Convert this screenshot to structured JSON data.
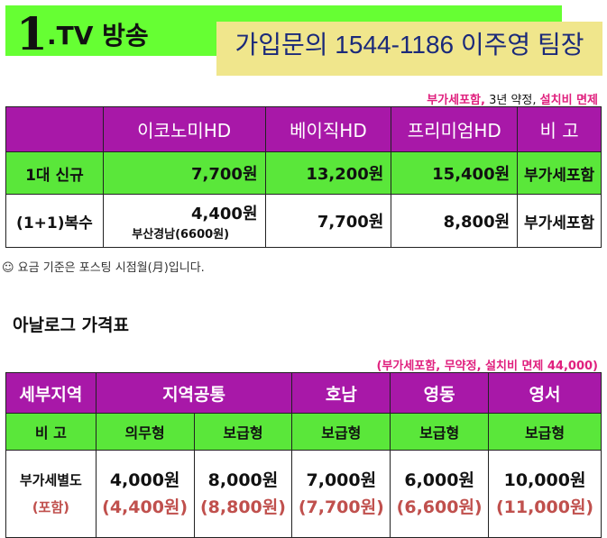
{
  "header": {
    "number": "1",
    "title": ".TV 방송",
    "contact": "가입문의 1544-1186  이주영 팀장"
  },
  "digital_note": {
    "part1": "부가세포함,",
    "part2": " 3년 약정,",
    "part3": "설치비 면제"
  },
  "digital_table": {
    "headers": [
      "",
      "이코노미HD",
      "베이직HD",
      "프리미엄HD",
      "비  고"
    ],
    "row_new": {
      "label": "1대 신규",
      "economy": "7,700원",
      "basic": "13,200원",
      "premium": "15,400원",
      "remark": "부가세포함"
    },
    "row_multi": {
      "label": "(1+1)복수",
      "economy": "4,400원",
      "economy_sub": "부산경남(6600원)",
      "basic": "7,700원",
      "premium": "8,800원",
      "remark": "부가세포함"
    }
  },
  "footnote": "☺ 요금 기준은 포스팅 시점월(月)입니다.",
  "analog": {
    "title": "아날로그 가격표",
    "note": "(부가세포함, 무약정, 설치비 면제 44,000)",
    "headers": [
      "세부지역",
      "지역공통",
      "호남",
      "영동",
      "영서"
    ],
    "sub_headers": [
      "비  고",
      "의무형",
      "보급형",
      "보급형",
      "보급형",
      "보급형"
    ],
    "row_label": "부가세별도",
    "row_label_sub": "(포함)",
    "prices": [
      "4,000원",
      "8,000원",
      "7,000원",
      "6,000원",
      "10,000원"
    ],
    "prices_incl": [
      "(4,400원)",
      "(8,800원)",
      "(7,700원)",
      "(6,600원)",
      "(11,000원)"
    ]
  }
}
